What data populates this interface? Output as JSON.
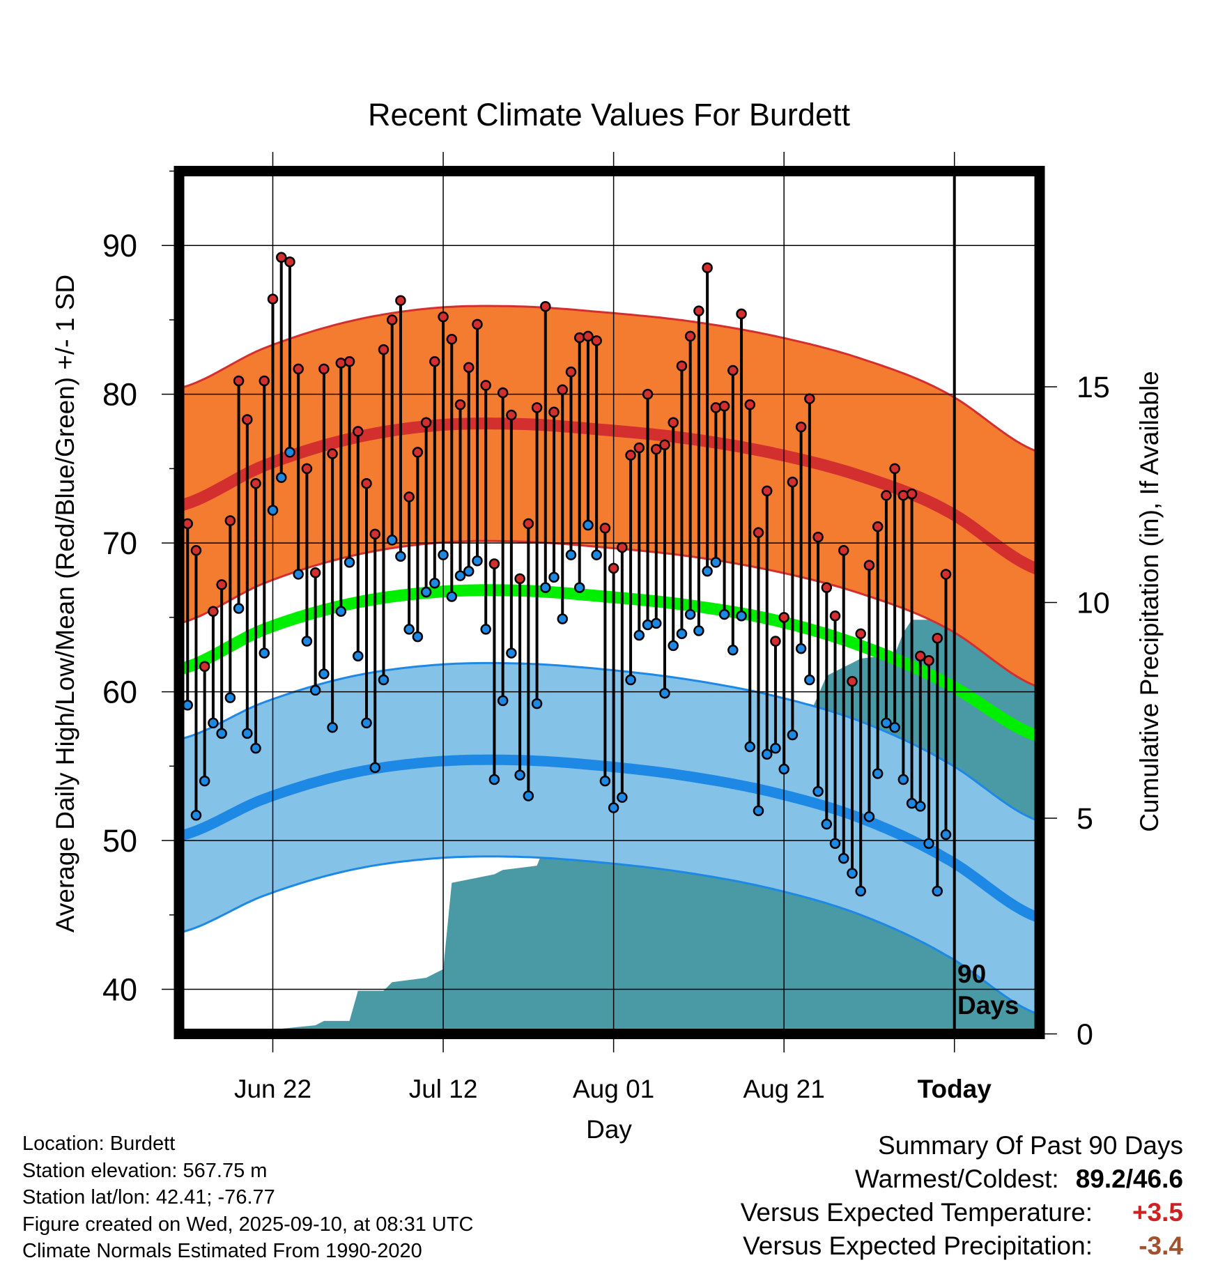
{
  "chart_data": {
    "type": "line",
    "title": "Recent Climate Values For Burdett",
    "xlabel": "Day",
    "ylabel": "Average Daily High/Low/Mean (Red/Blue/Green) +/- 1 SD",
    "y2label": "Cumulative Precipitation (in), If Available",
    "ylim": [
      37,
      95
    ],
    "y2lim": [
      0,
      20
    ],
    "xlim": [
      0,
      101
    ],
    "x_ticks": [
      {
        "day": 11,
        "label": "Jun 22"
      },
      {
        "day": 31,
        "label": "Jul 12"
      },
      {
        "day": 51,
        "label": "Aug 01"
      },
      {
        "day": 71,
        "label": "Aug 21"
      },
      {
        "day": 91,
        "label": "Today"
      }
    ],
    "y_ticks": [
      40,
      50,
      60,
      70,
      80,
      90
    ],
    "y2_ticks": [
      0,
      5,
      10,
      15
    ],
    "today_marker": {
      "day": 91,
      "label_line1": "90",
      "label_line2": "Days"
    },
    "normals": {
      "days": [
        0,
        10,
        20,
        30,
        40,
        50,
        60,
        70,
        80,
        90,
        101
      ],
      "high_mean": [
        72.5,
        75.2,
        77.0,
        77.9,
        78.0,
        77.6,
        77.0,
        76.0,
        74.5,
        72.2,
        68.2
      ],
      "high_sd": 7.9,
      "low_mean": [
        50.3,
        52.8,
        54.5,
        55.3,
        55.4,
        55.0,
        54.3,
        53.2,
        51.5,
        48.8,
        44.8
      ],
      "low_sd": 6.5,
      "avg_mean": [
        61.5,
        64.2,
        65.9,
        66.7,
        66.8,
        66.4,
        65.8,
        64.8,
        63.1,
        60.6,
        57.0
      ]
    },
    "series": [
      {
        "name": "Daily High",
        "color": "#d32f2f",
        "values": [
          71.3,
          69.5,
          61.7,
          65.4,
          67.2,
          71.5,
          80.9,
          78.3,
          74.0,
          80.9,
          86.4,
          89.2,
          88.9,
          81.7,
          75.0,
          68.0,
          81.7,
          76.0,
          82.1,
          82.2,
          77.5,
          74.0,
          70.6,
          83.0,
          85.0,
          86.3,
          73.1,
          76.1,
          78.1,
          82.2,
          85.2,
          83.7,
          79.3,
          81.8,
          84.7,
          80.6,
          68.6,
          80.1,
          78.6,
          67.6,
          71.3,
          79.1,
          85.9,
          78.8,
          80.3,
          81.5,
          83.8,
          83.9,
          83.6,
          71.0,
          68.3,
          69.7,
          75.9,
          76.4,
          80.0,
          76.3,
          76.6,
          78.1,
          81.9,
          83.9,
          85.6,
          88.5,
          79.1,
          79.2,
          81.6,
          85.4,
          79.3,
          70.7,
          73.5,
          63.4,
          65.0,
          74.1,
          77.8,
          79.7,
          70.4,
          67.0,
          65.1,
          69.5,
          60.7,
          63.9,
          68.5,
          71.1,
          73.2,
          75.0,
          73.2,
          73.3,
          62.4,
          62.1,
          63.6,
          67.9
        ]
      },
      {
        "name": "Daily Low",
        "color": "#1e88e5",
        "values": [
          59.1,
          51.7,
          54.0,
          57.9,
          57.2,
          59.6,
          65.6,
          57.2,
          56.2,
          62.6,
          72.2,
          74.4,
          76.1,
          67.9,
          63.4,
          60.1,
          61.2,
          57.6,
          65.4,
          68.7,
          62.4,
          57.9,
          54.9,
          60.8,
          70.2,
          69.1,
          64.2,
          63.7,
          66.7,
          67.3,
          69.2,
          66.4,
          67.8,
          68.1,
          68.8,
          64.2,
          54.1,
          59.4,
          62.6,
          54.4,
          53.0,
          59.2,
          67.0,
          67.7,
          64.9,
          69.2,
          67.0,
          71.2,
          69.2,
          54.0,
          52.2,
          52.9,
          60.8,
          63.8,
          64.5,
          64.6,
          59.9,
          63.1,
          63.9,
          65.2,
          64.1,
          68.1,
          68.7,
          65.2,
          62.8,
          65.1,
          56.3,
          52.0,
          55.8,
          56.2,
          54.8,
          57.1,
          62.9,
          60.8,
          53.3,
          51.1,
          49.8,
          48.8,
          47.8,
          46.6,
          51.6,
          54.5,
          57.9,
          57.6,
          54.1,
          52.5,
          52.3,
          49.8,
          46.6,
          50.4
        ]
      }
    ],
    "precip_cumulative": {
      "days": [
        0,
        10,
        11,
        16,
        17,
        20,
        21,
        24,
        25,
        29,
        30,
        31,
        32,
        37,
        38,
        42,
        43,
        44,
        48,
        49,
        51,
        52,
        58,
        59,
        62,
        63,
        68,
        69,
        72,
        73,
        74,
        76,
        77,
        79,
        80,
        84,
        85,
        86,
        91,
        101
      ],
      "values": [
        0.0,
        0.0,
        0.1,
        0.2,
        0.3,
        0.3,
        1.0,
        1.0,
        1.2,
        1.3,
        1.4,
        1.5,
        3.5,
        3.7,
        3.8,
        3.9,
        4.4,
        5.7,
        5.8,
        6.2,
        6.2,
        6.6,
        6.6,
        6.6,
        6.6,
        6.7,
        6.8,
        6.8,
        7.3,
        7.4,
        7.4,
        8.3,
        8.4,
        8.6,
        8.7,
        8.8,
        9.3,
        9.6,
        9.6,
        9.6
      ]
    }
  },
  "footer": {
    "location": "Location: Burdett",
    "elevation": "Station elevation: 567.75 m",
    "latlon": "Station lat/lon: 42.41; -76.77",
    "created": "Figure created on Wed, 2025-09-10, at 08:31 UTC",
    "normals": "Climate Normals Estimated From 1990-2020"
  },
  "summary": {
    "title": "Summary Of Past 90 Days",
    "warm_cold_label": "Warmest/Coldest:",
    "warm_cold_value": "89.2/46.6",
    "temp_label": "Versus Expected Temperature:",
    "temp_value": "+3.5",
    "precip_label": "Versus Expected Precipitation:",
    "precip_value": "-3.4"
  },
  "colors": {
    "high_band": "#f47c30",
    "high_line": "#d32f2f",
    "low_band": "#85c2e8",
    "low_line": "#1e88e5",
    "mean_line": "#00ee00",
    "precip_fill": "#4a9aa5",
    "high_dot": "#d32f2f",
    "low_dot": "#1e88e5"
  }
}
